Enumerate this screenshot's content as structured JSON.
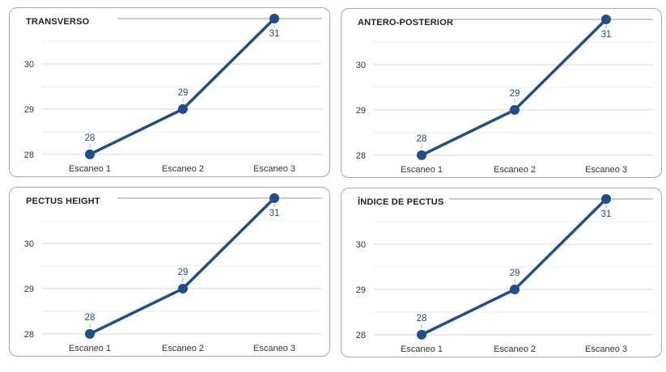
{
  "colors": {
    "series": "#1f4e8c",
    "grid": "#d6d6d6",
    "title_rule": "#9a9a9a",
    "card_border": "#a7a7a7"
  },
  "chart_data": [
    {
      "type": "line",
      "title": "TRANSVERSO",
      "categories": [
        "Escaneo 1",
        "Escaneo 2",
        "Escaneo 3"
      ],
      "values": [
        28,
        29,
        31
      ],
      "data_labels": [
        "28",
        "29",
        "31"
      ],
      "yticks": [
        "28",
        "29",
        "30"
      ],
      "ylim": [
        27.98,
        31.0
      ],
      "grid": true,
      "legend": "none"
    },
    {
      "type": "line",
      "title": "ANTERO-POSTERIOR",
      "categories": [
        "Escaneo 1",
        "Escaneo 2",
        "Escaneo 3"
      ],
      "values": [
        28,
        29,
        31
      ],
      "data_labels": [
        "28",
        "29",
        "31"
      ],
      "yticks": [
        "28",
        "29",
        "30"
      ],
      "ylim": [
        27.98,
        31.0
      ],
      "grid": true,
      "legend": "none"
    },
    {
      "type": "line",
      "title": "PECTUS HEIGHT",
      "categories": [
        "Escaneo 1",
        "Escaneo 2",
        "Escaneo 3"
      ],
      "values": [
        28,
        29,
        31
      ],
      "data_labels": [
        "28",
        "29",
        "31"
      ],
      "yticks": [
        "28",
        "29",
        "30"
      ],
      "ylim": [
        27.98,
        31.0
      ],
      "grid": true,
      "legend": "none"
    },
    {
      "type": "line",
      "title": "ÍNDICE DE PECTUS",
      "categories": [
        "Escaneo 1",
        "Escaneo 2",
        "Escaneo 3"
      ],
      "values": [
        28,
        29,
        31
      ],
      "data_labels": [
        "28",
        "29",
        "31"
      ],
      "yticks": [
        "28",
        "29",
        "30"
      ],
      "ylim": [
        27.98,
        31.0
      ],
      "grid": true,
      "legend": "none"
    }
  ]
}
